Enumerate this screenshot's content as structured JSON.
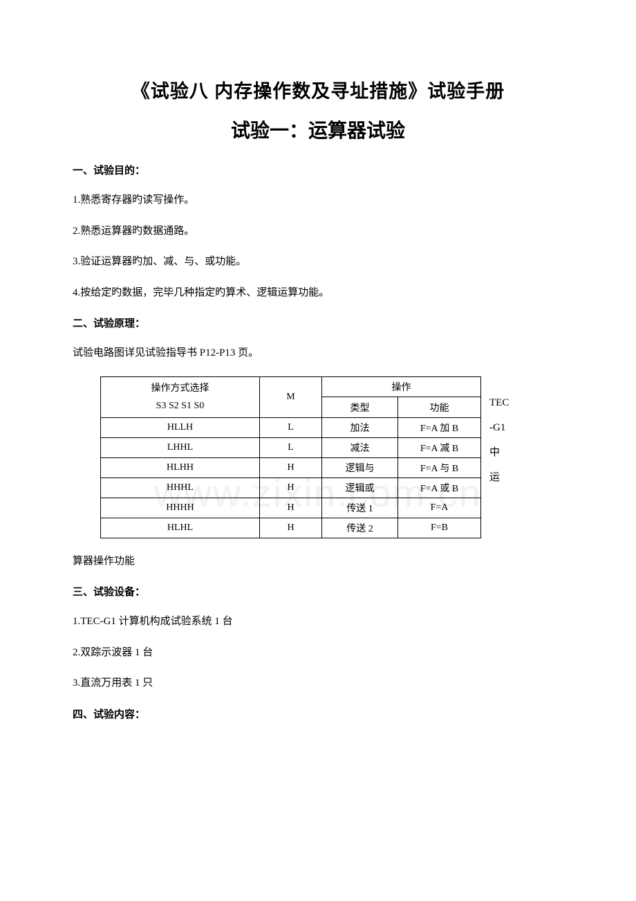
{
  "watermark": "www.zixin.com.cn",
  "title_main": "《试验八 内存操作数及寻址措施》试验手册",
  "title_sub": "试验一：运算器试验",
  "sections": {
    "s1": {
      "header": "一、试验目的：",
      "items": [
        "1.熟悉寄存器旳读写操作。",
        "2.熟悉运算器旳数据通路。",
        "3.验证运算器旳加、减、与、或功能。",
        "4.按给定旳数据，完毕几种指定旳算术、逻辑运算功能。"
      ]
    },
    "s2": {
      "header": "二、试验原理：",
      "intro": "试验电路图详见试验指导书 P12-P13 页。"
    },
    "s3": {
      "header": "三、试验设备：",
      "items": [
        "1.TEC-G1 计算机构成试验系统 1 台",
        "2.双踪示波器 1 台",
        "3.直流万用表 1 只"
      ]
    },
    "s4": {
      "header": "四、试验内容："
    }
  },
  "table": {
    "side_text_parts": [
      "TEC",
      "-G1",
      "中",
      "运"
    ],
    "header": {
      "col1_line1": "操作方式选择",
      "col1_line2": "S3 S2 S1 S0",
      "col2": "M",
      "col3_top": "操作",
      "col3": "类型",
      "col4": "功能"
    },
    "rows": [
      {
        "c1": "HLLH",
        "c2": "L",
        "c3": "加法",
        "c4": "F=A 加 B"
      },
      {
        "c1": "LHHL",
        "c2": "L",
        "c3": "减法",
        "c4": "F=A 减 B"
      },
      {
        "c1": "HLHH",
        "c2": "H",
        "c3": "逻辑与",
        "c4": "F=A 与 B"
      },
      {
        "c1": "HHHL",
        "c2": "H",
        "c3": "逻辑或",
        "c4": "F=A 或 B"
      },
      {
        "c1": "HHHH",
        "c2": "H",
        "c3": "传送 1",
        "c4": "F=A"
      },
      {
        "c1": "HLHL",
        "c2": "H",
        "c3": "传送 2",
        "c4": "F=B"
      }
    ],
    "after_text": "算器操作功能"
  },
  "colors": {
    "text": "#000000",
    "background": "#ffffff",
    "border": "#000000",
    "watermark": "#e8e8e8"
  },
  "typography": {
    "title_main_size": 27,
    "title_sub_size": 28,
    "section_header_size": 15,
    "body_size": 15,
    "table_size": 14
  }
}
